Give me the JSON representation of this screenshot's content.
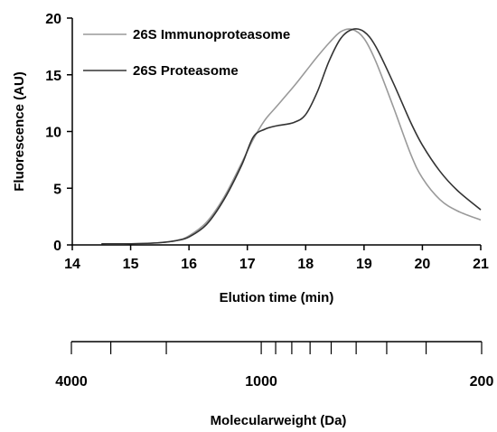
{
  "chart_data": {
    "type": "line",
    "xlabel": "Elution time (min)",
    "ylabel": "Fluorescence (AU)",
    "xlim": [
      14,
      21
    ],
    "ylim": [
      0,
      20
    ],
    "xticks": [
      "14",
      "15",
      "16",
      "17",
      "18",
      "19",
      "20",
      "21"
    ],
    "yticks": [
      "0",
      "5",
      "10",
      "15",
      "20"
    ],
    "grid": false,
    "legend_position": "top-left",
    "series": [
      {
        "name": "26S Immunoproteasome",
        "color": "#9a9a9a",
        "x": [
          14.5,
          15.0,
          15.5,
          15.8,
          16.0,
          16.3,
          16.6,
          16.9,
          17.1,
          17.3,
          17.5,
          17.8,
          18.0,
          18.2,
          18.4,
          18.6,
          18.8,
          19.0,
          19.2,
          19.5,
          19.8,
          20.0,
          20.3,
          20.6,
          21.0
        ],
        "y": [
          0.1,
          0.1,
          0.2,
          0.4,
          0.8,
          2.0,
          4.2,
          7.2,
          9.3,
          11.0,
          12.2,
          14.0,
          15.3,
          16.6,
          17.8,
          18.8,
          19.0,
          18.2,
          16.2,
          12.2,
          8.0,
          5.9,
          4.0,
          3.0,
          2.2
        ]
      },
      {
        "name": "26S Proteasome",
        "color": "#333333",
        "x": [
          14.5,
          15.0,
          15.5,
          15.8,
          16.0,
          16.3,
          16.6,
          16.9,
          17.1,
          17.3,
          17.5,
          17.8,
          18.0,
          18.2,
          18.4,
          18.6,
          18.8,
          19.0,
          19.2,
          19.5,
          19.8,
          20.0,
          20.3,
          20.6,
          21.0
        ],
        "y": [
          0.1,
          0.1,
          0.2,
          0.4,
          0.7,
          1.8,
          4.0,
          7.0,
          9.5,
          10.2,
          10.5,
          10.8,
          11.5,
          13.5,
          16.2,
          18.2,
          19.0,
          18.8,
          17.5,
          14.3,
          10.8,
          8.8,
          6.5,
          4.8,
          3.1
        ]
      }
    ]
  },
  "secondary_axis": {
    "label": "Molecularweight (Da)",
    "tick_labels": [
      "4000",
      "1000",
      "200"
    ],
    "labeled_ticks": [
      4000,
      1000,
      200
    ],
    "minor_ticks": [
      3000,
      2000,
      900,
      800,
      700,
      600,
      500,
      400,
      300
    ]
  }
}
